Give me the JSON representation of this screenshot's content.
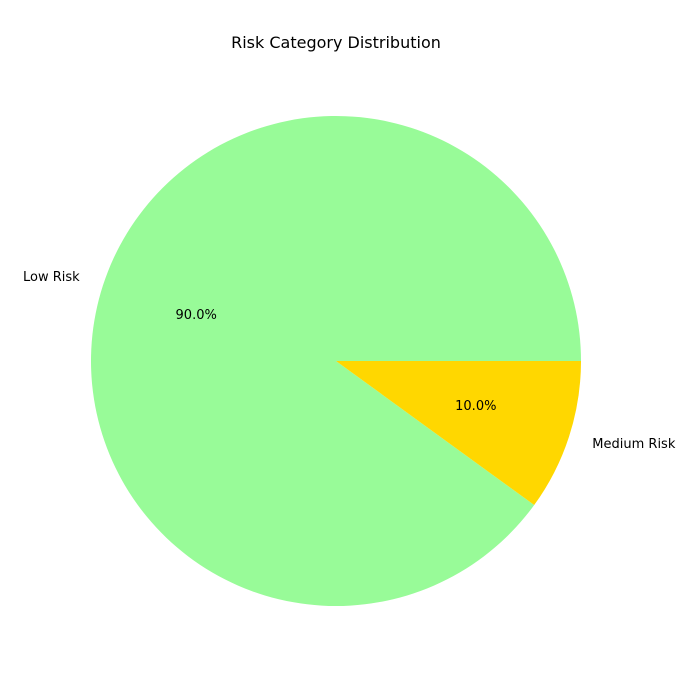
{
  "chart_data": {
    "type": "pie",
    "title": "Risk Category Distribution",
    "slices": [
      {
        "label": "Low Risk",
        "value": 90.0,
        "pct_label": "90.0%",
        "color": "#98fb98"
      },
      {
        "label": "Medium Risk",
        "value": 10.0,
        "pct_label": "10.0%",
        "color": "#ffd700"
      }
    ],
    "start_angle_deg": 0,
    "direction": "counterclockwise",
    "legend": "none"
  }
}
